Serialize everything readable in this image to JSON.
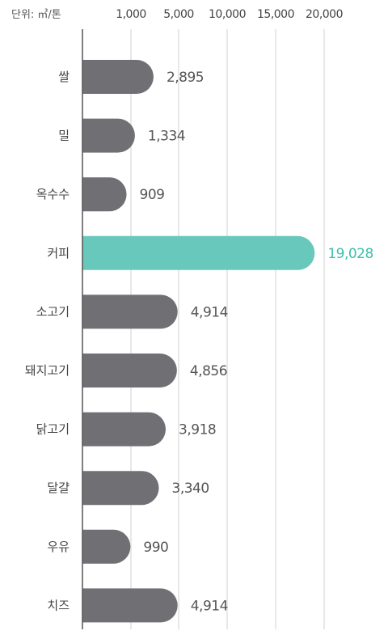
{
  "unit_label": "단위: ㎥/톤",
  "colors": {
    "bar": "#707074",
    "highlight": "#68c8bc",
    "highlight_text": "#3bbfad",
    "gridline": "#d0d0d0",
    "axis": "#555555"
  },
  "chart_data": {
    "type": "bar",
    "orientation": "horizontal",
    "categories": [
      "쌀",
      "밀",
      "옥수수",
      "커피",
      "소고기",
      "돼지고기",
      "닭고기",
      "달걀",
      "우유",
      "치즈"
    ],
    "values": [
      2895,
      1334,
      909,
      19028,
      4914,
      4856,
      3918,
      3340,
      990,
      4914
    ],
    "value_labels": [
      "2,895",
      "1,334",
      "909",
      "19,028",
      "4,914",
      "4,856",
      "3,918",
      "3,340",
      "990",
      "4,914"
    ],
    "highlight_index": 3,
    "xticks": [
      {
        "value": 1000,
        "label": "1,000"
      },
      {
        "value": 5000,
        "label": "5,000"
      },
      {
        "value": 10000,
        "label": "10,000"
      },
      {
        "value": 15000,
        "label": "15,000"
      },
      {
        "value": 20000,
        "label": "20,000"
      }
    ],
    "x_axis_position": "top",
    "grid": true,
    "legend": "none"
  }
}
